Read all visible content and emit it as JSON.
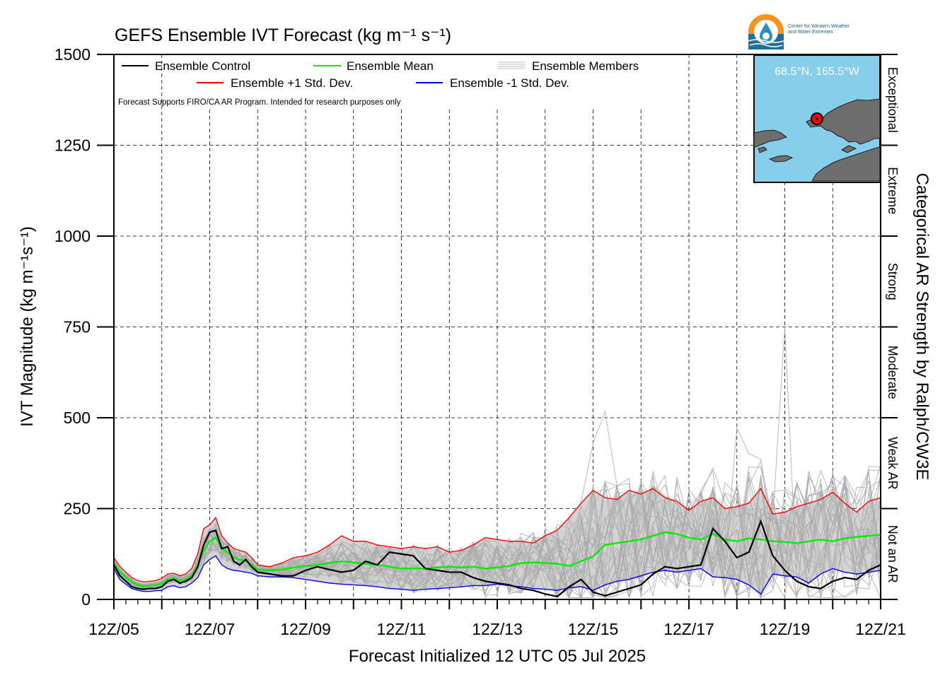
{
  "logo": {
    "line1": "Center for Western Weather",
    "line2": "and Water Extremes"
  },
  "chart_data": {
    "type": "line",
    "title": "GEFS Ensemble IVT Forecast (kg m⁻¹ s⁻¹)",
    "xlabel": "Forecast Initialized 12 UTC 05 Jul 2025",
    "ylabel": "IVT Magnitude (kg m⁻¹s⁻¹)",
    "right_label": "Categorical AR Strength by Ralph/CW3E",
    "note": "Forecast Supports FIRO/CA AR Program. Intended for research purposes only",
    "location": "68.5°N, 165.5°W",
    "xlim": [
      0,
      16
    ],
    "ylim": [
      0,
      1500
    ],
    "x_unit": "days from 12Z/05 Jul 2025",
    "x_ticks": [
      0,
      2,
      4,
      6,
      8,
      10,
      12,
      14,
      16
    ],
    "x_tick_labels": [
      "12Z/05",
      "12Z/07",
      "12Z/09",
      "12Z/11",
      "12Z/13",
      "12Z/15",
      "12Z/17",
      "12Z/19",
      "12Z/21"
    ],
    "y_ticks": [
      0,
      250,
      500,
      750,
      1000,
      1250,
      1500
    ],
    "y_tick_labels": [
      "0",
      "250",
      "500",
      "750",
      "1000",
      "1250",
      "1500"
    ],
    "grid": true,
    "legend_position": "top-left",
    "legend": [
      {
        "label": "Ensemble Control",
        "color": "#000000"
      },
      {
        "label": "Ensemble Mean",
        "color": "#00ee00"
      },
      {
        "label": "Ensemble Members",
        "color": "#aaaaaa"
      },
      {
        "label": "Ensemble +1 Std. Dev.",
        "color": "#ff0000"
      },
      {
        "label": "Ensemble -1 Std. Dev.",
        "color": "#0000ee"
      }
    ],
    "categories": [
      {
        "label": "Not an AR",
        "from": 0,
        "to": 250
      },
      {
        "label": "Weak AR",
        "from": 250,
        "to": 500
      },
      {
        "label": "Moderate",
        "from": 500,
        "to": 750
      },
      {
        "label": "Strong",
        "from": 750,
        "to": 1000
      },
      {
        "label": "Extreme",
        "from": 1000,
        "to": 1250
      },
      {
        "label": "Exceptional",
        "from": 1250,
        "to": 1500
      }
    ],
    "series": [
      {
        "name": "Ensemble Control",
        "color": "#000000",
        "x": [
          0,
          0.125,
          0.25,
          0.375,
          0.5,
          0.625,
          0.75,
          0.875,
          1.0,
          1.125,
          1.25,
          1.375,
          1.5,
          1.625,
          1.75,
          1.875,
          2.0,
          2.125,
          2.25,
          2.375,
          2.5,
          2.625,
          2.75,
          2.875,
          3.0,
          3.25,
          3.5,
          3.75,
          4.0,
          4.25,
          4.5,
          4.75,
          5.0,
          5.25,
          5.5,
          5.75,
          6.0,
          6.25,
          6.5,
          6.75,
          7.0,
          7.25,
          7.5,
          7.75,
          8.0,
          8.25,
          8.5,
          8.75,
          9.0,
          9.25,
          9.5,
          9.75,
          10.0,
          10.25,
          10.5,
          10.75,
          11.0,
          11.25,
          11.5,
          11.75,
          12.0,
          12.25,
          12.5,
          12.75,
          13.0,
          13.25,
          13.5,
          13.75,
          14.0,
          14.25,
          14.5,
          14.75,
          15.0,
          15.25,
          15.5,
          15.75,
          16.0
        ],
        "values": [
          95,
          65,
          50,
          35,
          30,
          28,
          30,
          30,
          35,
          50,
          55,
          45,
          50,
          60,
          90,
          150,
          185,
          190,
          140,
          145,
          105,
          95,
          110,
          90,
          75,
          70,
          65,
          65,
          80,
          90,
          82,
          75,
          80,
          105,
          95,
          130,
          125,
          120,
          85,
          80,
          75,
          75,
          60,
          50,
          45,
          40,
          30,
          25,
          15,
          8,
          35,
          55,
          20,
          10,
          20,
          30,
          40,
          70,
          90,
          85,
          90,
          95,
          195,
          160,
          115,
          130,
          215,
          120,
          80,
          50,
          35,
          30,
          50,
          60,
          55,
          80,
          95
        ]
      },
      {
        "name": "Ensemble Mean",
        "color": "#00ee00",
        "x": [
          0,
          0.125,
          0.25,
          0.375,
          0.5,
          0.625,
          0.75,
          0.875,
          1.0,
          1.125,
          1.25,
          1.375,
          1.5,
          1.625,
          1.75,
          1.875,
          2.0,
          2.125,
          2.25,
          2.375,
          2.5,
          2.625,
          2.75,
          2.875,
          3.0,
          3.25,
          3.5,
          3.75,
          4.0,
          4.25,
          4.5,
          4.75,
          5.0,
          5.25,
          5.5,
          5.75,
          6.0,
          6.25,
          6.5,
          6.75,
          7.0,
          7.25,
          7.5,
          7.75,
          8.0,
          8.25,
          8.5,
          8.75,
          9.0,
          9.25,
          9.5,
          9.75,
          10.0,
          10.25,
          10.5,
          10.75,
          11.0,
          11.25,
          11.5,
          11.75,
          12.0,
          12.25,
          12.5,
          12.75,
          13.0,
          13.25,
          13.5,
          13.75,
          14.0,
          14.25,
          14.5,
          14.75,
          15.0,
          15.25,
          15.5,
          15.75,
          16.0
        ],
        "values": [
          100,
          75,
          62,
          48,
          40,
          36,
          38,
          40,
          43,
          55,
          58,
          52,
          55,
          65,
          95,
          135,
          160,
          170,
          140,
          130,
          115,
          110,
          105,
          95,
          82,
          80,
          82,
          88,
          92,
          95,
          100,
          105,
          102,
          98,
          95,
          90,
          85,
          85,
          85,
          88,
          90,
          88,
          90,
          85,
          88,
          92,
          100,
          102,
          100,
          98,
          92,
          105,
          118,
          150,
          155,
          160,
          165,
          175,
          185,
          180,
          170,
          165,
          180,
          165,
          160,
          168,
          165,
          160,
          158,
          155,
          160,
          165,
          160,
          168,
          172,
          175,
          178
        ]
      },
      {
        "name": "Ensemble +1 Std. Dev.",
        "color": "#ff0000",
        "x": [
          0,
          0.125,
          0.25,
          0.375,
          0.5,
          0.625,
          0.75,
          0.875,
          1.0,
          1.125,
          1.25,
          1.375,
          1.5,
          1.625,
          1.75,
          1.875,
          2.0,
          2.125,
          2.25,
          2.375,
          2.5,
          2.625,
          2.75,
          2.875,
          3.0,
          3.25,
          3.5,
          3.75,
          4.0,
          4.25,
          4.5,
          4.75,
          5.0,
          5.25,
          5.5,
          5.75,
          6.0,
          6.25,
          6.5,
          6.75,
          7.0,
          7.25,
          7.5,
          7.75,
          8.0,
          8.25,
          8.5,
          8.75,
          9.0,
          9.25,
          9.5,
          9.75,
          10.0,
          10.25,
          10.5,
          10.75,
          11.0,
          11.25,
          11.5,
          11.75,
          12.0,
          12.25,
          12.5,
          12.75,
          13.0,
          13.25,
          13.5,
          13.75,
          14.0,
          14.25,
          14.5,
          14.75,
          15.0,
          15.25,
          15.5,
          15.75,
          16.0
        ],
        "values": [
          115,
          90,
          75,
          60,
          52,
          48,
          50,
          52,
          58,
          70,
          72,
          65,
          70,
          85,
          125,
          195,
          205,
          225,
          175,
          155,
          140,
          135,
          130,
          115,
          95,
          90,
          100,
          115,
          120,
          130,
          150,
          175,
          160,
          160,
          150,
          145,
          140,
          145,
          140,
          145,
          130,
          135,
          150,
          170,
          165,
          160,
          160,
          155,
          175,
          190,
          225,
          265,
          300,
          280,
          275,
          300,
          290,
          305,
          280,
          270,
          245,
          270,
          280,
          250,
          255,
          265,
          305,
          235,
          240,
          255,
          265,
          275,
          295,
          265,
          240,
          270,
          280
        ]
      },
      {
        "name": "Ensemble -1 Std. Dev.",
        "color": "#0000ee",
        "x": [
          0,
          0.125,
          0.25,
          0.375,
          0.5,
          0.625,
          0.75,
          0.875,
          1.0,
          1.125,
          1.25,
          1.375,
          1.5,
          1.625,
          1.75,
          1.875,
          2.0,
          2.125,
          2.25,
          2.375,
          2.5,
          2.625,
          2.75,
          2.875,
          3.0,
          3.25,
          3.5,
          3.75,
          4.0,
          4.25,
          4.5,
          4.75,
          5.0,
          5.25,
          5.5,
          5.75,
          6.0,
          6.25,
          6.5,
          6.75,
          7.0,
          7.25,
          7.5,
          7.75,
          8.0,
          8.25,
          8.5,
          8.75,
          9.0,
          9.25,
          9.5,
          9.75,
          10.0,
          10.25,
          10.5,
          10.75,
          11.0,
          11.25,
          11.5,
          11.75,
          12.0,
          12.25,
          12.5,
          12.75,
          13.0,
          13.25,
          13.5,
          13.75,
          14.0,
          14.25,
          14.5,
          14.75,
          15.0,
          15.25,
          15.5,
          15.75,
          16.0
        ],
        "values": [
          85,
          55,
          42,
          30,
          25,
          22,
          22,
          24,
          25,
          35,
          38,
          32,
          35,
          45,
          60,
          95,
          110,
          120,
          95,
          85,
          80,
          78,
          75,
          72,
          65,
          62,
          62,
          60,
          55,
          50,
          45,
          42,
          40,
          38,
          35,
          30,
          28,
          25,
          28,
          30,
          32,
          35,
          38,
          38,
          42,
          38,
          35,
          30,
          28,
          25,
          32,
          35,
          25,
          40,
          50,
          55,
          65,
          75,
          80,
          75,
          80,
          85,
          62,
          60,
          55,
          40,
          15,
          70,
          65,
          62,
          45,
          70,
          85,
          75,
          70,
          75,
          80
        ]
      }
    ]
  }
}
